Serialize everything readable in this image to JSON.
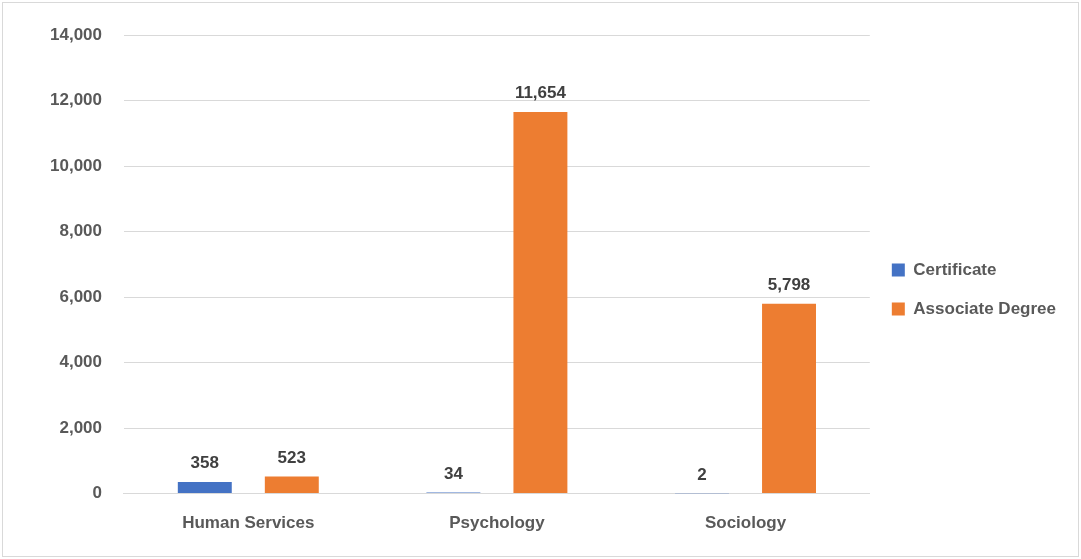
{
  "chart_data": {
    "type": "bar",
    "categories": [
      "Human Services",
      "Psychology",
      "Sociology"
    ],
    "series": [
      {
        "name": "Certificate",
        "color": "#4472c4",
        "values": [
          358,
          34,
          2
        ],
        "value_labels": [
          "358",
          "34",
          "2"
        ]
      },
      {
        "name": "Associate Degree",
        "color": "#ed7d31",
        "values": [
          523,
          11654,
          5798
        ],
        "value_labels": [
          "523",
          "11,654",
          "5,798"
        ]
      }
    ],
    "ylim": [
      0,
      14000
    ],
    "yticks": [
      {
        "value": 0,
        "label": "0"
      },
      {
        "value": 2000,
        "label": "2,000"
      },
      {
        "value": 4000,
        "label": "4,000"
      },
      {
        "value": 6000,
        "label": "6,000"
      },
      {
        "value": 8000,
        "label": "8,000"
      },
      {
        "value": 10000,
        "label": "10,000"
      },
      {
        "value": 12000,
        "label": "12,000"
      },
      {
        "value": 14000,
        "label": "14,000"
      }
    ],
    "grid": "y",
    "legend": "right"
  }
}
